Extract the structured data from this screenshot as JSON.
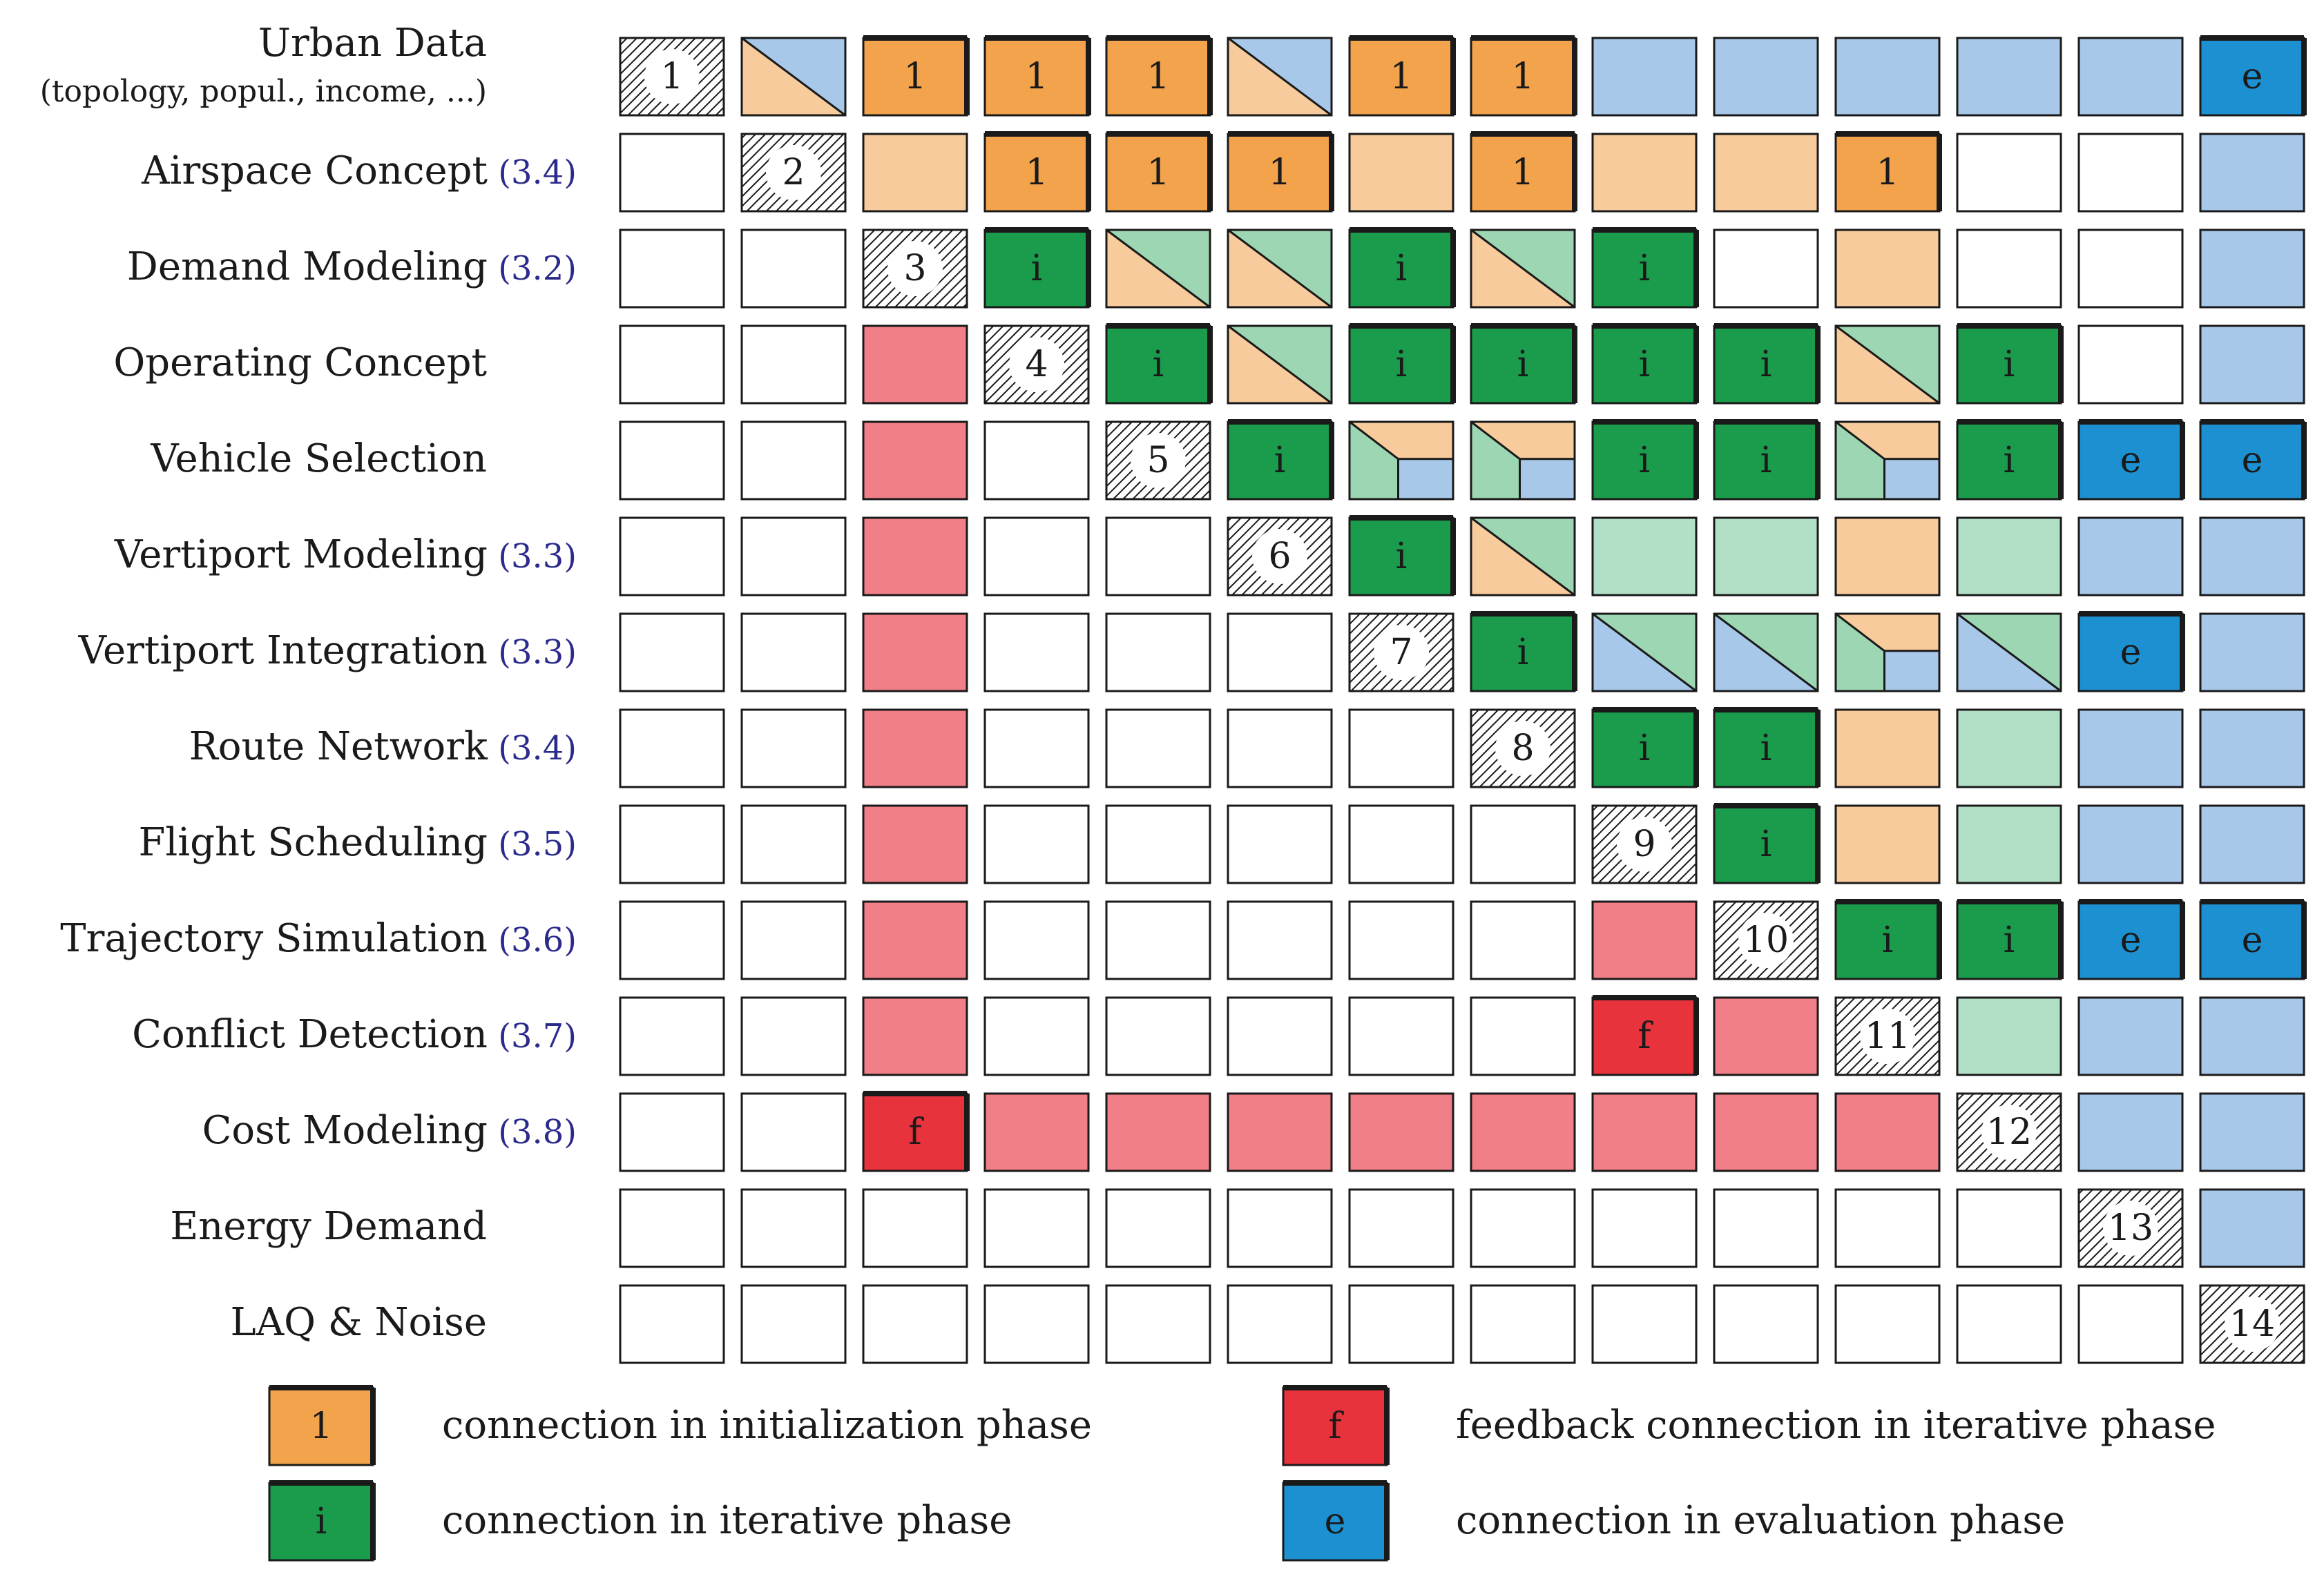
{
  "colors": {
    "init": "#f3a34c",
    "init_light": "#f8cb9c",
    "iter": "#1a9c4c",
    "iter_light": "#b2e0c7",
    "iter_mid": "#9dd6b3",
    "feedback": "#e8323c",
    "feedback_light": "#f07f87",
    "eval": "#1c90d0",
    "eval_light": "#a8c8ea",
    "stroke": "#1a1a1a"
  },
  "rows": [
    {
      "label": "Urban Data",
      "sublabel": "(topology, popul., income, ...)",
      "ref": ""
    },
    {
      "label": "Airspace Concept",
      "ref": "(3.4)"
    },
    {
      "label": "Demand Modeling",
      "ref": "(3.2)"
    },
    {
      "label": "Operating Concept",
      "ref": ""
    },
    {
      "label": "Vehicle Selection",
      "ref": ""
    },
    {
      "label": "Vertiport Modeling",
      "ref": "(3.3)"
    },
    {
      "label": "Vertiport Integration",
      "ref": "(3.3)"
    },
    {
      "label": "Route Network",
      "ref": "(3.4)"
    },
    {
      "label": "Flight Scheduling",
      "ref": "(3.5)"
    },
    {
      "label": "Trajectory Simulation",
      "ref": "(3.6)"
    },
    {
      "label": "Conflict Detection",
      "ref": "(3.7)"
    },
    {
      "label": "Cost Modeling",
      "ref": "(3.8)"
    },
    {
      "label": "Energy Demand",
      "ref": ""
    },
    {
      "label": "LAQ & Noise",
      "ref": ""
    }
  ],
  "matrix": [
    [
      "D:1",
      "T:IL,EL",
      "I:1",
      "I:1",
      "I:1",
      "T:IL,EL",
      "I:1",
      "I:1",
      "EL",
      "EL",
      "EL",
      "EL",
      "EL",
      "E:e"
    ],
    [
      "W",
      "D:2",
      "IL",
      "I:1",
      "I:1",
      "I:1",
      "IL",
      "I:1",
      "IL",
      "IL",
      "I:1",
      "W",
      "W",
      "EL"
    ],
    [
      "W",
      "W",
      "D:3",
      "G:i",
      "T:IL,GM",
      "T:IL,GM",
      "G:i",
      "T:IL,GM",
      "G:i",
      "W",
      "IL",
      "W",
      "W",
      "EL"
    ],
    [
      "W",
      "W",
      "FL",
      "D:4",
      "G:i",
      "T:IL,GM",
      "G:i",
      "G:i",
      "G:i",
      "G:i",
      "T:IL,GM",
      "G:i",
      "W",
      "EL"
    ],
    [
      "W",
      "W",
      "FL",
      "W",
      "D:5",
      "G:i",
      "Q",
      "Q",
      "G:i",
      "G:i",
      "Q",
      "G:i",
      "E:e",
      "E:e"
    ],
    [
      "W",
      "W",
      "FL",
      "W",
      "W",
      "D:6",
      "G:i",
      "T:IL,GM",
      "GL",
      "GL",
      "IL",
      "GL",
      "EL",
      "EL"
    ],
    [
      "W",
      "W",
      "FL",
      "W",
      "W",
      "W",
      "D:7",
      "G:i",
      "T:EL,GM",
      "T:EL,GM",
      "Q",
      "T:EL,GM",
      "E:e",
      "EL"
    ],
    [
      "W",
      "W",
      "FL",
      "W",
      "W",
      "W",
      "W",
      "D:8",
      "G:i",
      "G:i",
      "IL",
      "GL",
      "EL",
      "EL"
    ],
    [
      "W",
      "W",
      "FL",
      "W",
      "W",
      "W",
      "W",
      "W",
      "D:9",
      "G:i",
      "IL",
      "GL",
      "EL",
      "EL"
    ],
    [
      "W",
      "W",
      "FL",
      "W",
      "W",
      "W",
      "W",
      "W",
      "FL",
      "D:10",
      "G:i",
      "G:i",
      "E:e",
      "E:e"
    ],
    [
      "W",
      "W",
      "FL",
      "W",
      "W",
      "W",
      "W",
      "W",
      "F:f",
      "FL",
      "D:11",
      "GL",
      "EL",
      "EL"
    ],
    [
      "W",
      "W",
      "F:f",
      "FL",
      "FL",
      "FL",
      "FL",
      "FL",
      "FL",
      "FL",
      "FL",
      "D:12",
      "EL",
      "EL"
    ],
    [
      "W",
      "W",
      "W",
      "W",
      "W",
      "W",
      "W",
      "W",
      "W",
      "W",
      "W",
      "W",
      "D:13",
      "EL"
    ],
    [
      "W",
      "W",
      "W",
      "W",
      "W",
      "W",
      "W",
      "W",
      "W",
      "W",
      "W",
      "W",
      "W",
      "D:14"
    ]
  ],
  "legend": [
    {
      "symbol": "1",
      "kind": "init",
      "text": "connection in initialization phase"
    },
    {
      "symbol": "i",
      "kind": "iter",
      "text": "connection in iterative phase"
    },
    {
      "symbol": "f",
      "kind": "feedback",
      "text": "feedback connection in iterative phase"
    },
    {
      "symbol": "e",
      "kind": "eval",
      "text": "connection in evaluation phase"
    }
  ]
}
